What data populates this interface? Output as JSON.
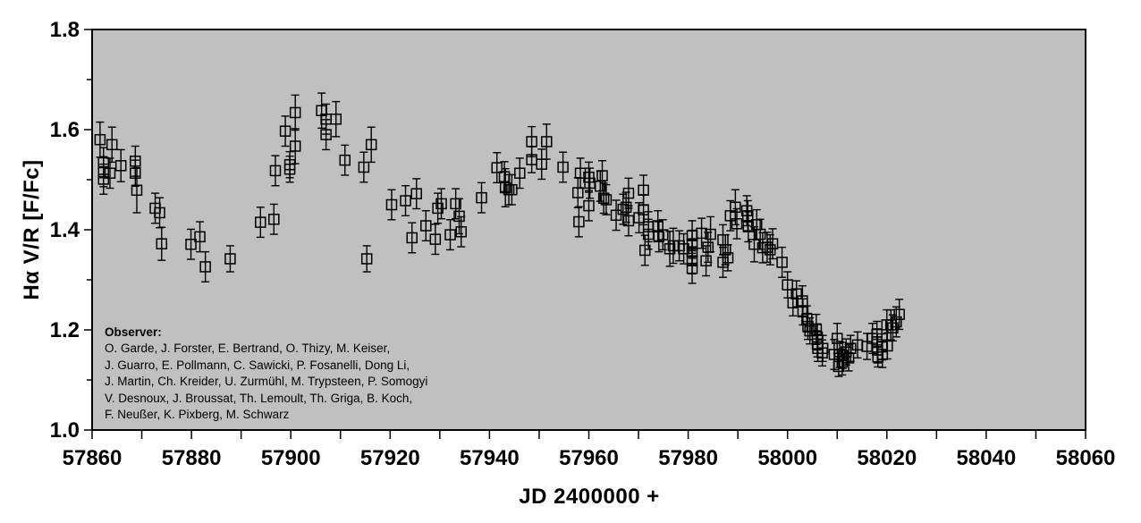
{
  "colors": {
    "plot_background": "#c0c0c0",
    "page_background": "#ffffff",
    "marker": "#000000",
    "text": "#000000"
  },
  "annotation": {
    "heading": "Observer:",
    "lines": [
      "O. Garde, J. Forster, E. Bertrand, O. Thizy, M. Keiser,",
      "J. Guarro, E. Pollmann, C. Sawicki, P. Fosanelli, Dong Li,",
      "J. Martin, Ch. Kreider, U. Zurmühl, M. Trypsteen, P. Somogyi",
      "V. Desnoux, J. Broussat, Th. Lemoult, Th. Griga, B. Koch,",
      "F. Neußer, K. Pixberg, M. Schwarz"
    ]
  },
  "chart_data": {
    "type": "scatter",
    "title": "",
    "xlabel": "JD 2400000 +",
    "ylabel": "Hα V/R [F/Fc]",
    "xlim": [
      57860,
      58060
    ],
    "ylim": [
      1.0,
      1.8
    ],
    "x_major_tick_step": 20,
    "x_minor_tick_step": 10,
    "y_major_tick_step": 0.2,
    "y_minor_tick_step": 0.1,
    "grid": false,
    "legend": false,
    "marker": "open-square",
    "error_bars": true,
    "points": [
      [
        57861.6,
        1.58,
        0.035
      ],
      [
        57862.3,
        1.534,
        0.03
      ],
      [
        57862.3,
        1.516,
        0.03
      ],
      [
        57862.3,
        1.501,
        0.03
      ],
      [
        57863.6,
        1.513,
        0.03
      ],
      [
        57864.0,
        1.57,
        0.035
      ],
      [
        57865.8,
        1.528,
        0.032
      ],
      [
        57868.7,
        1.537,
        0.03
      ],
      [
        57868.7,
        1.513,
        0.026
      ],
      [
        57869.0,
        1.479,
        0.045
      ],
      [
        57872.7,
        1.443,
        0.03
      ],
      [
        57873.6,
        1.434,
        0.03
      ],
      [
        57874.0,
        1.372,
        0.033
      ],
      [
        57879.9,
        1.371,
        0.03
      ],
      [
        57881.7,
        1.386,
        0.03
      ],
      [
        57882.8,
        1.326,
        0.03
      ],
      [
        57887.8,
        1.342,
        0.026
      ],
      [
        57893.9,
        1.415,
        0.03
      ],
      [
        57896.6,
        1.421,
        0.03
      ],
      [
        57896.9,
        1.518,
        0.03
      ],
      [
        57898.9,
        1.597,
        0.03
      ],
      [
        57899.8,
        1.53,
        0.026
      ],
      [
        57899.8,
        1.521,
        0.026
      ],
      [
        57900.9,
        1.634,
        0.035
      ],
      [
        57900.9,
        1.567,
        0.035
      ],
      [
        57906.2,
        1.638,
        0.035
      ],
      [
        57907.1,
        1.621,
        0.03
      ],
      [
        57907.1,
        1.59,
        0.03
      ],
      [
        57909.1,
        1.621,
        0.035
      ],
      [
        57910.9,
        1.539,
        0.03
      ],
      [
        57914.7,
        1.525,
        0.03
      ],
      [
        57915.3,
        1.342,
        0.026
      ],
      [
        57916.2,
        1.57,
        0.035
      ],
      [
        57920.3,
        1.45,
        0.03
      ],
      [
        57923.1,
        1.458,
        0.03
      ],
      [
        57924.4,
        1.384,
        0.03
      ],
      [
        57925.3,
        1.472,
        0.03
      ],
      [
        57927.2,
        1.408,
        0.03
      ],
      [
        57929.1,
        1.381,
        0.03
      ],
      [
        57929.6,
        1.443,
        0.03
      ],
      [
        57930.3,
        1.452,
        0.03
      ],
      [
        57932.1,
        1.39,
        0.03
      ],
      [
        57933.2,
        1.452,
        0.03
      ],
      [
        57933.9,
        1.427,
        0.035
      ],
      [
        57934.3,
        1.396,
        0.03
      ],
      [
        57938.4,
        1.464,
        0.03
      ],
      [
        57941.5,
        1.524,
        0.03
      ],
      [
        57943.0,
        1.506,
        0.03
      ],
      [
        57943.2,
        1.484,
        0.038
      ],
      [
        57943.9,
        1.48,
        0.03
      ],
      [
        57944.5,
        1.48,
        0.03
      ],
      [
        57946.1,
        1.513,
        0.03
      ],
      [
        57948.5,
        1.576,
        0.03
      ],
      [
        57948.5,
        1.54,
        0.026
      ],
      [
        57950.5,
        1.531,
        0.03
      ],
      [
        57951.5,
        1.576,
        0.035
      ],
      [
        57954.8,
        1.525,
        0.03
      ],
      [
        57957.8,
        1.474,
        0.03
      ],
      [
        57958.0,
        1.416,
        0.03
      ],
      [
        57958.3,
        1.513,
        0.03
      ],
      [
        57960.0,
        1.505,
        0.03
      ],
      [
        57960.2,
        1.493,
        0.03
      ],
      [
        57960.0,
        1.448,
        0.03
      ],
      [
        57962.3,
        1.487,
        0.03
      ],
      [
        57962.7,
        1.508,
        0.03
      ],
      [
        57963.0,
        1.463,
        0.03
      ],
      [
        57963.5,
        1.46,
        0.03
      ],
      [
        57965.5,
        1.429,
        0.03
      ],
      [
        57966.9,
        1.441,
        0.03
      ],
      [
        57967.5,
        1.445,
        0.03
      ],
      [
        57968.0,
        1.473,
        0.03
      ],
      [
        57968.0,
        1.418,
        0.03
      ],
      [
        57970.1,
        1.424,
        0.03
      ],
      [
        57971.0,
        1.479,
        0.03
      ],
      [
        57971.0,
        1.44,
        0.03
      ],
      [
        57971.3,
        1.359,
        0.03
      ],
      [
        57972.0,
        1.406,
        0.03
      ],
      [
        57972.0,
        1.391,
        0.03
      ],
      [
        57973.9,
        1.408,
        0.03
      ],
      [
        57974.1,
        1.386,
        0.03
      ],
      [
        57974.9,
        1.39,
        0.03
      ],
      [
        57976.3,
        1.362,
        0.035
      ],
      [
        57977.0,
        1.368,
        0.035
      ],
      [
        57978.2,
        1.368,
        0.03
      ],
      [
        57979.1,
        1.362,
        0.03
      ],
      [
        57980.8,
        1.388,
        0.03
      ],
      [
        57980.8,
        1.371,
        0.028
      ],
      [
        57980.8,
        1.356,
        0.026
      ],
      [
        57980.8,
        1.338,
        0.026
      ],
      [
        57980.8,
        1.323,
        0.03
      ],
      [
        57982.7,
        1.393,
        0.03
      ],
      [
        57983.6,
        1.338,
        0.03
      ],
      [
        57984.0,
        1.365,
        0.03
      ],
      [
        57984.5,
        1.391,
        0.035
      ],
      [
        57987.0,
        1.38,
        0.03
      ],
      [
        57987.0,
        1.335,
        0.03
      ],
      [
        57987.5,
        1.36,
        0.03
      ],
      [
        57988.0,
        1.344,
        0.026
      ],
      [
        57988.5,
        1.428,
        0.03
      ],
      [
        57989.5,
        1.445,
        0.035
      ],
      [
        57989.8,
        1.412,
        0.03
      ],
      [
        57991.8,
        1.438,
        0.03
      ],
      [
        57992.0,
        1.428,
        0.03
      ],
      [
        57992.1,
        1.406,
        0.03
      ],
      [
        57993.3,
        1.371,
        0.035
      ],
      [
        57993.8,
        1.41,
        0.03
      ],
      [
        57994.5,
        1.391,
        0.03
      ],
      [
        57995.0,
        1.364,
        0.03
      ],
      [
        57995.9,
        1.365,
        0.03
      ],
      [
        57996.5,
        1.36,
        0.03
      ],
      [
        57997.0,
        1.372,
        0.03
      ],
      [
        57998.9,
        1.335,
        0.03
      ],
      [
        58000.0,
        1.29,
        0.026
      ],
      [
        58001.1,
        1.254,
        0.026
      ],
      [
        58001.8,
        1.272,
        0.026
      ],
      [
        58003.0,
        1.258,
        0.03
      ],
      [
        58003.1,
        1.236,
        0.026
      ],
      [
        58003.9,
        1.222,
        0.026
      ],
      [
        58004.1,
        1.207,
        0.026
      ],
      [
        58004.5,
        1.198,
        0.026
      ],
      [
        58005.8,
        1.201,
        0.03
      ],
      [
        58006.0,
        1.186,
        0.026
      ],
      [
        58006.0,
        1.172,
        0.026
      ],
      [
        58006.1,
        1.163,
        0.026
      ],
      [
        58007.0,
        1.154,
        0.026
      ],
      [
        58007.1,
        1.163,
        0.026
      ],
      [
        58009.4,
        1.151,
        0.03
      ],
      [
        58010.0,
        1.183,
        0.03
      ],
      [
        58010.3,
        1.127,
        0.02
      ],
      [
        58010.5,
        1.151,
        0.026
      ],
      [
        58011.0,
        1.136,
        0.026
      ],
      [
        58011.1,
        1.149,
        0.026
      ],
      [
        58011.8,
        1.156,
        0.026
      ],
      [
        58012.3,
        1.144,
        0.026
      ],
      [
        58012.7,
        1.163,
        0.026
      ],
      [
        58014.1,
        1.17,
        0.026
      ],
      [
        58016.0,
        1.167,
        0.026
      ],
      [
        58017.1,
        1.183,
        0.03
      ],
      [
        58018.0,
        1.191,
        0.026
      ],
      [
        58018.0,
        1.176,
        0.026
      ],
      [
        58018.1,
        1.16,
        0.026
      ],
      [
        58018.2,
        1.146,
        0.02
      ],
      [
        58019.0,
        1.166,
        0.026
      ],
      [
        58019.1,
        1.151,
        0.026
      ],
      [
        58020.0,
        1.21,
        0.03
      ],
      [
        58020.1,
        1.168,
        0.026
      ],
      [
        58020.8,
        1.21,
        0.03
      ],
      [
        58021.2,
        1.204,
        0.026
      ],
      [
        58021.9,
        1.216,
        0.03
      ],
      [
        58022.5,
        1.231,
        0.03
      ]
    ]
  }
}
